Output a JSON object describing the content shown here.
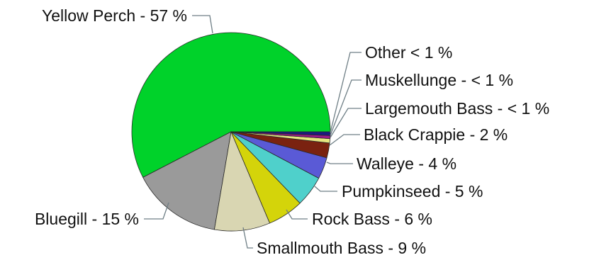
{
  "chart_data": {
    "type": "pie",
    "slices": [
      {
        "name": "Yellow Perch",
        "label": "Yellow Perch - 57 %",
        "value": 57.2,
        "color": "#00d22a"
      },
      {
        "name": "Bluegill",
        "label": "Bluegill - 15 %",
        "value": 14.6,
        "color": "#9a9a9a"
      },
      {
        "name": "Smallmouth Bass",
        "label": "Smallmouth Bass - 9 %",
        "value": 9.0,
        "color": "#d9d6b2"
      },
      {
        "name": "Rock Bass",
        "label": "Rock Bass - 6 %",
        "value": 5.8,
        "color": "#d4d40a"
      },
      {
        "name": "Pumpkinseed",
        "label": "Pumpkinseed - 5 %",
        "value": 5.0,
        "color": "#4fd0cb"
      },
      {
        "name": "Walleye",
        "label": "Walleye - 4 %",
        "value": 3.5,
        "color": "#5a5ad6"
      },
      {
        "name": "Black Crappie",
        "label": "Black Crappie - 2 %",
        "value": 2.4,
        "color": "#7a2210"
      },
      {
        "name": "Largemouth Bass",
        "label": "Largemouth Bass - < 1 %",
        "value": 0.7,
        "color": "#e6e680"
      },
      {
        "name": "Muskellunge",
        "label": "Muskellunge - < 1 %",
        "value": 0.5,
        "color": "#9a1a8a"
      },
      {
        "name": "Other",
        "label": "Other < 1 %",
        "value": 0.6,
        "color": "#1a1a80"
      }
    ]
  }
}
